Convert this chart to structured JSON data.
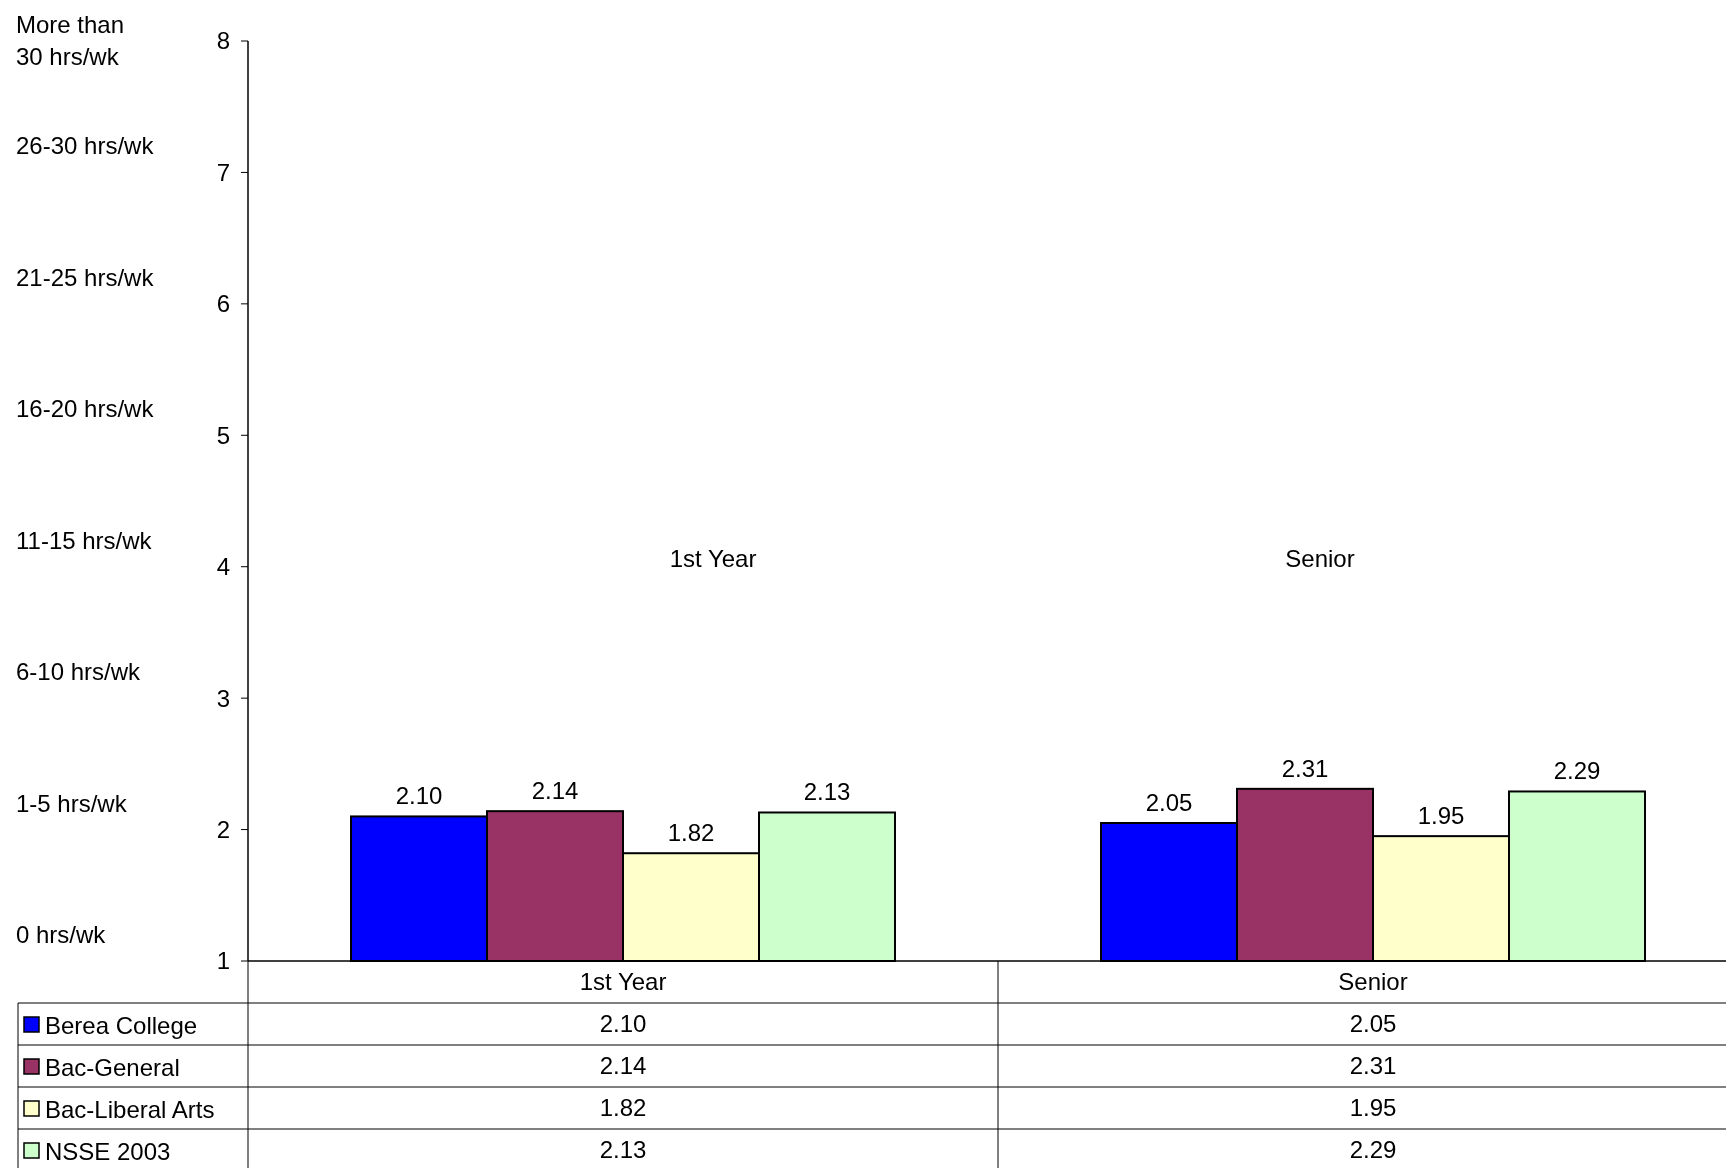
{
  "chart_data": {
    "type": "bar",
    "categories": [
      "1st Year",
      "Senior"
    ],
    "series": [
      {
        "name": "Berea College",
        "color": "#0000ff",
        "values": [
          2.1,
          2.05
        ],
        "value_labels": [
          "2.10",
          "2.05"
        ]
      },
      {
        "name": "Bac-General",
        "color": "#993366",
        "values": [
          2.14,
          2.31
        ],
        "value_labels": [
          "2.14",
          "2.31"
        ]
      },
      {
        "name": "Bac-Liberal Arts",
        "color": "#ffffcc",
        "values": [
          1.82,
          1.95
        ],
        "value_labels": [
          "1.82",
          "1.95"
        ]
      },
      {
        "name": "NSSE 2003",
        "color": "#ccffcc",
        "values": [
          2.13,
          2.29
        ],
        "value_labels": [
          "2.13",
          "2.29"
        ]
      }
    ],
    "ylim": [
      1,
      8
    ],
    "yticks": [
      1,
      2,
      3,
      4,
      5,
      6,
      7,
      8
    ],
    "grid": false,
    "legend": "bottom",
    "annotations": [
      "0 hrs/wk",
      "1-5 hrs/wk",
      "6-10 hrs/wk",
      "11-15 hrs/wk",
      "16-20 hrs/wk",
      "21-25 hrs/wk",
      "26-30 hrs/wk",
      "More than\n30 hrs/wk",
      "1st Year",
      "Senior"
    ]
  }
}
